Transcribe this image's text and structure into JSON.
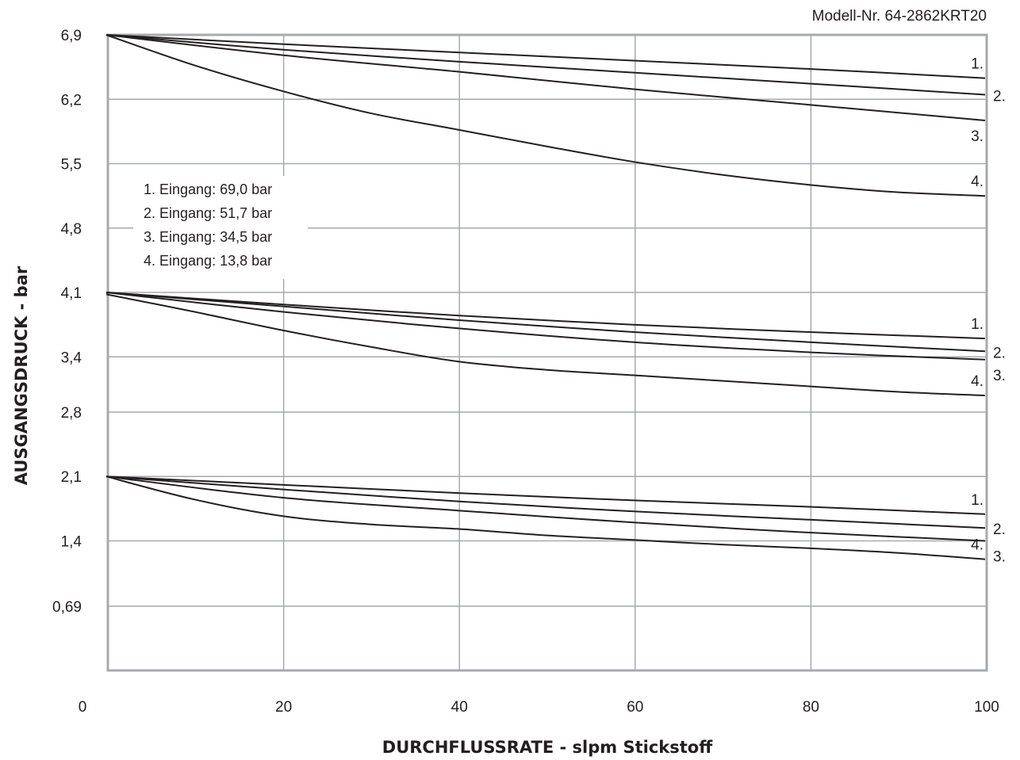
{
  "model_label": "Modell-Nr. 64-2862KRT20",
  "chart_data": {
    "type": "line",
    "title": "",
    "xlabel": "DURCHFLUSSRATE - slpm Stickstoff",
    "ylabel": "AUSGANGSDRUCK - bar",
    "xlim": [
      0,
      100
    ],
    "ylim": [
      0,
      6.9
    ],
    "x_ticks": [
      "0",
      "20",
      "40",
      "60",
      "80",
      "100"
    ],
    "y_ticks": [
      {
        "label": "6,9",
        "value": 6.9
      },
      {
        "label": "6,2",
        "value": 6.2
      },
      {
        "label": "5,5",
        "value": 5.5
      },
      {
        "label": "4,8",
        "value": 4.8
      },
      {
        "label": "4,1",
        "value": 4.1
      },
      {
        "label": "3,4",
        "value": 3.4
      },
      {
        "label": "2,8",
        "value": 2.8
      },
      {
        "label": "2,1",
        "value": 2.1
      },
      {
        "label": "1,4",
        "value": 1.4
      },
      {
        "label": "0,69",
        "value": 0.69
      }
    ],
    "grid": true,
    "legend": {
      "placement": "left",
      "entries": [
        "1. Eingang: 69,0 bar",
        "2. Eingang: 51,7 bar",
        "3. Eingang: 34,5 bar",
        "4. Eingang: 13,8 bar"
      ]
    },
    "groups": [
      {
        "setpoint": 6.9,
        "series": [
          {
            "name": "1.",
            "x": [
              0,
              20,
              40,
              60,
              80,
              100
            ],
            "y": [
              6.9,
              6.8,
              6.71,
              6.62,
              6.53,
              6.43
            ]
          },
          {
            "name": "2.",
            "x": [
              0,
              20,
              40,
              60,
              80,
              100
            ],
            "y": [
              6.9,
              6.74,
              6.61,
              6.49,
              6.37,
              6.25
            ]
          },
          {
            "name": "3.",
            "x": [
              0,
              20,
              40,
              60,
              80,
              100
            ],
            "y": [
              6.9,
              6.68,
              6.5,
              6.31,
              6.14,
              5.97
            ]
          },
          {
            "name": "4.",
            "x": [
              0,
              10,
              20,
              30,
              40,
              50,
              60,
              70,
              80,
              90,
              100
            ],
            "y": [
              6.9,
              6.57,
              6.29,
              6.05,
              5.87,
              5.69,
              5.52,
              5.38,
              5.27,
              5.19,
              5.15
            ]
          }
        ]
      },
      {
        "setpoint": 4.1,
        "series": [
          {
            "name": "1.",
            "x": [
              0,
              20,
              40,
              60,
              80,
              100
            ],
            "y": [
              4.1,
              3.97,
              3.85,
              3.75,
              3.67,
              3.6
            ]
          },
          {
            "name": "2.",
            "x": [
              0,
              20,
              40,
              60,
              80,
              100
            ],
            "y": [
              4.1,
              3.95,
              3.8,
              3.67,
              3.56,
              3.46
            ]
          },
          {
            "name": "3.",
            "x": [
              0,
              20,
              40,
              60,
              80,
              100
            ],
            "y": [
              4.1,
              3.89,
              3.71,
              3.56,
              3.45,
              3.37
            ]
          },
          {
            "name": "4.",
            "x": [
              0,
              10,
              20,
              30,
              40,
              50,
              60,
              70,
              80,
              90,
              100
            ],
            "y": [
              4.08,
              3.89,
              3.69,
              3.51,
              3.35,
              3.26,
              3.2,
              3.14,
              3.08,
              3.02,
              2.98
            ]
          }
        ]
      },
      {
        "setpoint": 2.1,
        "series": [
          {
            "name": "1.",
            "x": [
              0,
              20,
              40,
              60,
              80,
              100
            ],
            "y": [
              2.1,
              2.01,
              1.92,
              1.84,
              1.77,
              1.69
            ]
          },
          {
            "name": "2.",
            "x": [
              0,
              20,
              40,
              60,
              80,
              100
            ],
            "y": [
              2.1,
              1.96,
              1.83,
              1.72,
              1.63,
              1.54
            ]
          },
          {
            "name": "3.",
            "x": [
              0,
              20,
              40,
              60,
              80,
              100
            ],
            "y": [
              2.1,
              1.87,
              1.73,
              1.6,
              1.49,
              1.4
            ]
          },
          {
            "name": "4.",
            "x": [
              0,
              10,
              20,
              30,
              40,
              50,
              60,
              70,
              80,
              90,
              100
            ],
            "y": [
              2.1,
              1.85,
              1.67,
              1.58,
              1.53,
              1.46,
              1.41,
              1.36,
              1.32,
              1.27,
              1.2
            ]
          }
        ]
      }
    ]
  }
}
